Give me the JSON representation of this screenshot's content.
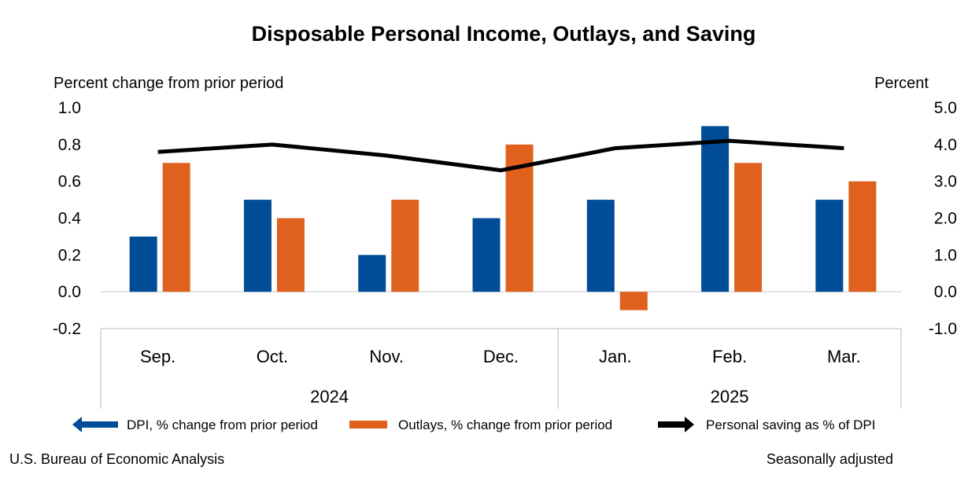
{
  "chart_data": {
    "type": "bar",
    "title": "Disposable Personal Income, Outlays, and Saving",
    "left_axis_title": "Percent change from prior period",
    "right_axis_title": "Percent",
    "categories": [
      "Sep.",
      "Oct.",
      "Nov.",
      "Dec.",
      "Jan.",
      "Feb.",
      "Mar."
    ],
    "groups": [
      {
        "label": "2024",
        "span": [
          0,
          3
        ]
      },
      {
        "label": "2025",
        "span": [
          4,
          6
        ]
      }
    ],
    "ylim_left": [
      -0.2,
      1.0
    ],
    "yticks_left": [
      "1.0",
      "0.8",
      "0.6",
      "0.4",
      "0.2",
      "0.0",
      "-0.2"
    ],
    "ylim_right": [
      -1.0,
      5.0
    ],
    "yticks_right": [
      "5.0",
      "4.0",
      "3.0",
      "2.0",
      "1.0",
      "0.0",
      "-1.0"
    ],
    "series": [
      {
        "name": "DPI, % change from prior period",
        "type": "bar",
        "axis": "left",
        "color": "#004C97",
        "values": [
          0.3,
          0.5,
          0.2,
          0.4,
          0.5,
          0.9,
          0.5
        ]
      },
      {
        "name": "Outlays, % change from prior period",
        "type": "bar",
        "axis": "left",
        "color": "#E0611E",
        "values": [
          0.7,
          0.4,
          0.5,
          0.8,
          -0.1,
          0.7,
          0.6
        ]
      },
      {
        "name": "Personal saving as % of DPI",
        "type": "line",
        "axis": "right",
        "color": "#000000",
        "values": [
          3.8,
          4.0,
          3.7,
          3.3,
          3.9,
          4.1,
          3.9
        ]
      }
    ],
    "footer_left": "U.S. Bureau of Economic Analysis",
    "footer_right": "Seasonally adjusted"
  }
}
